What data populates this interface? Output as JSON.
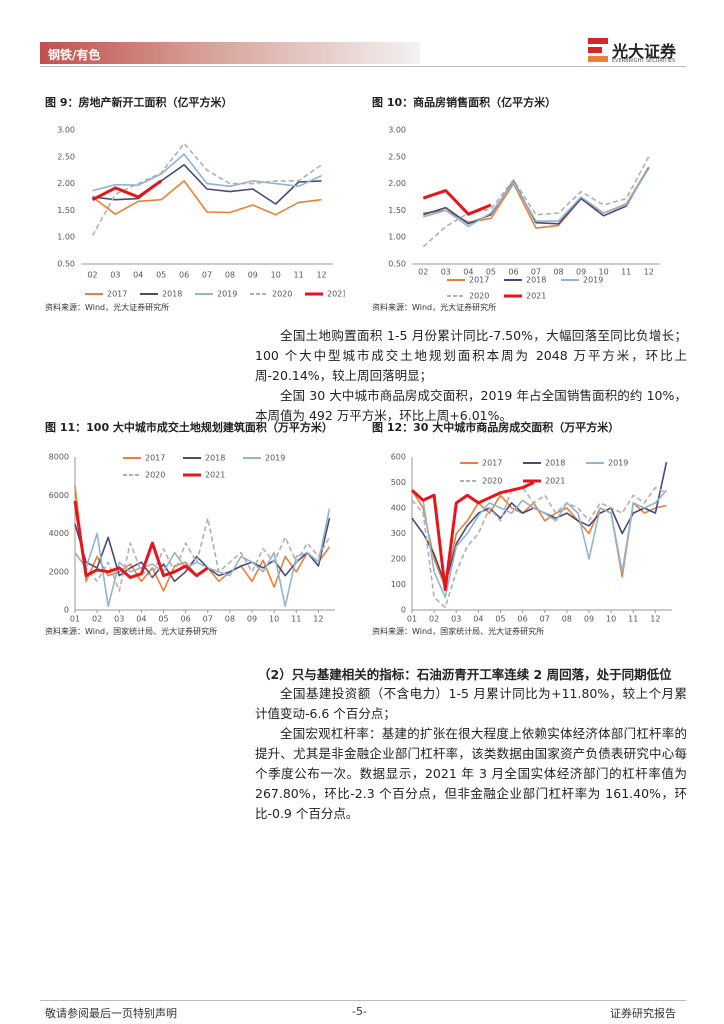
{
  "header": {
    "section": "钢铁/有色",
    "logo": "光大证券",
    "logo_en": "EVERBRIGHT SECURITIES"
  },
  "chart_data": [
    {
      "type": "line",
      "title": "图 9：房地产新开工面积（亿平方米）",
      "source": "资料来源：Wind，光大证券研究所",
      "categories": [
        "02",
        "03",
        "04",
        "05",
        "06",
        "07",
        "08",
        "09",
        "10",
        "11",
        "12"
      ],
      "ylim": [
        0.5,
        3.0
      ],
      "yticks": [
        {
          "value": 0.5,
          "label": "0.50"
        },
        {
          "value": 1.0,
          "label": "1.00"
        },
        {
          "value": 1.5,
          "label": "1.50"
        },
        {
          "value": 2.0,
          "label": "2.00"
        },
        {
          "value": 2.5,
          "label": "2.50"
        },
        {
          "value": 3.0,
          "label": "3.00"
        }
      ],
      "grid": false,
      "series": [
        {
          "name": "2017",
          "color": "#e8803a",
          "values": [
            1.75,
            1.43,
            1.67,
            1.7,
            2.05,
            1.47,
            1.46,
            1.6,
            1.42,
            1.65,
            1.7
          ]
        },
        {
          "name": "2018",
          "color": "#4b4a75",
          "values": [
            1.75,
            1.7,
            1.72,
            2.05,
            2.35,
            1.9,
            1.85,
            1.9,
            1.62,
            2.03,
            2.05
          ]
        },
        {
          "name": "2019",
          "color": "#8fb5cf",
          "values": [
            1.87,
            1.98,
            1.97,
            2.18,
            2.55,
            2.0,
            1.95,
            2.05,
            2.0,
            1.95,
            2.15
          ]
        },
        {
          "name": "2020",
          "color": "#b0b0b0",
          "dash": true,
          "values": [
            1.03,
            1.8,
            2.0,
            2.2,
            2.75,
            2.25,
            2.0,
            2.0,
            2.05,
            2.05,
            2.35
          ]
        },
        {
          "name": "2021",
          "color": "#e8141b",
          "line_width": 3,
          "values": [
            1.7,
            1.92,
            1.75,
            2.05,
            null,
            null,
            null,
            null,
            null,
            null,
            null
          ]
        }
      ]
    },
    {
      "type": "line",
      "title": "图 10：商品房销售面积（亿平方米）",
      "source": "资料来源：Wind，光大证券研究所",
      "categories": [
        "02",
        "03",
        "04",
        "05",
        "06",
        "07",
        "08",
        "09",
        "10",
        "11",
        "12"
      ],
      "ylim": [
        0.5,
        3.0
      ],
      "yticks": [
        {
          "value": 0.5,
          "label": "0.50"
        },
        {
          "value": 1.0,
          "label": "1.00"
        },
        {
          "value": 1.5,
          "label": "1.50"
        },
        {
          "value": 2.0,
          "label": "2.00"
        },
        {
          "value": 2.5,
          "label": "2.50"
        },
        {
          "value": 3.0,
          "label": "3.00"
        }
      ],
      "grid": false,
      "series": [
        {
          "name": "2017",
          "color": "#e8803a",
          "values": [
            1.45,
            1.5,
            1.28,
            1.35,
            2.0,
            1.17,
            1.22,
            1.72,
            1.45,
            1.62,
            2.3
          ]
        },
        {
          "name": "2018",
          "color": "#4b4a75",
          "values": [
            1.42,
            1.55,
            1.25,
            1.42,
            2.05,
            1.27,
            1.25,
            1.72,
            1.4,
            1.58,
            2.3
          ]
        },
        {
          "name": "2019",
          "color": "#8fb5cf",
          "values": [
            1.38,
            1.5,
            1.2,
            1.45,
            2.02,
            1.3,
            1.3,
            1.75,
            1.45,
            1.6,
            2.28
          ]
        },
        {
          "name": "2020",
          "color": "#b0b0b0",
          "dash": true,
          "values": [
            0.82,
            1.2,
            1.45,
            1.52,
            2.07,
            1.42,
            1.45,
            1.85,
            1.6,
            1.72,
            2.5
          ]
        },
        {
          "name": "2021",
          "color": "#e8141b",
          "line_width": 3,
          "values": [
            1.73,
            1.87,
            1.43,
            1.6,
            null,
            null,
            null,
            null,
            null,
            null,
            null
          ]
        }
      ]
    },
    {
      "type": "line",
      "title": "图 11：100 大中城市成交土地规划建筑面积（万平方米）",
      "source": "资料来源：Wind，国家统计局、光大证券研究所",
      "x": [
        1,
        2,
        3,
        4,
        5,
        6,
        7,
        8,
        9,
        10,
        11,
        12,
        13,
        14,
        15,
        16,
        17,
        18,
        19,
        20,
        21,
        22,
        23,
        24
      ],
      "xlim": [
        1,
        24.5
      ],
      "xticks": [
        {
          "value": 1,
          "label": "01"
        },
        {
          "value": 3,
          "label": "02"
        },
        {
          "value": 5,
          "label": "03"
        },
        {
          "value": 7,
          "label": "04"
        },
        {
          "value": 9,
          "label": "05"
        },
        {
          "value": 11,
          "label": "06"
        },
        {
          "value": 13,
          "label": "07"
        },
        {
          "value": 15,
          "label": "08"
        },
        {
          "value": 17,
          "label": "09"
        },
        {
          "value": 19,
          "label": "10"
        },
        {
          "value": 21,
          "label": "11"
        },
        {
          "value": 23,
          "label": "12"
        }
      ],
      "ylim": [
        0,
        8000
      ],
      "yticks": [
        0,
        2000,
        4000,
        6000,
        8000
      ],
      "grid": false,
      "series": [
        {
          "name": "2017",
          "color": "#e8803a",
          "values": [
            6500,
            1500,
            2800,
            1800,
            2000,
            2400,
            1500,
            2200,
            1000,
            2300,
            2500,
            1800,
            2200,
            1500,
            2000,
            2300,
            1500,
            2600,
            1200,
            2800,
            2000,
            3000,
            2500,
            3300
          ]
        },
        {
          "name": "2018",
          "color": "#4b4a75",
          "values": [
            4500,
            2500,
            2200,
            3800,
            1800,
            2200,
            2500,
            1700,
            2400,
            1500,
            2000,
            2800,
            2200,
            1800,
            2000,
            2300,
            2500,
            2200,
            2600,
            1800,
            2500,
            3000,
            2300,
            4800
          ]
        },
        {
          "name": "2019",
          "color": "#8fb5cf",
          "values": [
            3000,
            2200,
            4000,
            200,
            2500,
            2000,
            2200,
            2400,
            2000,
            3000,
            2200,
            2500,
            2200,
            2000,
            1800,
            2800,
            2500,
            2000,
            3000,
            200,
            2800,
            3000,
            2500,
            5300
          ]
        },
        {
          "name": "2020",
          "color": "#b0b0b0",
          "dash": true,
          "values": [
            3000,
            2200,
            1500,
            2500,
            1000,
            3500,
            2000,
            1800,
            3200,
            2000,
            3500,
            2500,
            4800,
            2000,
            2500,
            3000,
            2000,
            3200,
            2500,
            3800,
            2500,
            3500,
            2800,
            3800
          ]
        },
        {
          "name": "2021",
          "color": "#e8141b",
          "line_width": 3,
          "values": [
            5700,
            1800,
            2100,
            2000,
            2200,
            1700,
            1900,
            3500,
            1800,
            2000,
            2300,
            1800,
            2200,
            null,
            null,
            null,
            null,
            null,
            null,
            null,
            null,
            null,
            null,
            null
          ]
        }
      ]
    },
    {
      "type": "line",
      "title": "图 12：30 大中城市商品房成交面积（万平方米）",
      "source": "资料来源：Wind，国家统计局、光大证券研究所",
      "x": [
        1,
        2,
        3,
        4,
        5,
        6,
        7,
        8,
        9,
        10,
        11,
        12,
        13,
        14,
        15,
        16,
        17,
        18,
        19,
        20,
        21,
        22,
        23,
        24
      ],
      "xlim": [
        1,
        24.5
      ],
      "xticks": [
        {
          "value": 1,
          "label": "01"
        },
        {
          "value": 3,
          "label": "02"
        },
        {
          "value": 5,
          "label": "03"
        },
        {
          "value": 7,
          "label": "04"
        },
        {
          "value": 9,
          "label": "05"
        },
        {
          "value": 11,
          "label": "06"
        },
        {
          "value": 13,
          "label": "07"
        },
        {
          "value": 15,
          "label": "08"
        },
        {
          "value": 17,
          "label": "09"
        },
        {
          "value": 19,
          "label": "10"
        },
        {
          "value": 21,
          "label": "11"
        },
        {
          "value": 23,
          "label": "12"
        }
      ],
      "ylim": [
        0,
        600
      ],
      "yticks": [
        0,
        100,
        200,
        300,
        400,
        500,
        600
      ],
      "grid": false,
      "series": [
        {
          "name": "2017",
          "color": "#e8803a",
          "values": [
            470,
            400,
            200,
            90,
            300,
            350,
            420,
            380,
            450,
            400,
            380,
            420,
            350,
            380,
            400,
            350,
            300,
            400,
            380,
            130,
            420,
            380,
            400,
            410
          ]
        },
        {
          "name": "2018",
          "color": "#4b4a75",
          "values": [
            360,
            300,
            220,
            100,
            260,
            330,
            380,
            400,
            360,
            420,
            380,
            400,
            380,
            360,
            380,
            350,
            330,
            380,
            400,
            300,
            380,
            400,
            380,
            580
          ]
        },
        {
          "name": "2019",
          "color": "#8fb5cf",
          "values": [
            470,
            430,
            150,
            50,
            250,
            300,
            370,
            420,
            400,
            380,
            430,
            400,
            380,
            350,
            420,
            380,
            200,
            400,
            380,
            150,
            420,
            400,
            420,
            470
          ]
        },
        {
          "name": "2020",
          "color": "#b0b0b0",
          "dash": true,
          "values": [
            430,
            380,
            50,
            10,
            150,
            250,
            300,
            400,
            350,
            470,
            480,
            420,
            450,
            380,
            420,
            400,
            350,
            420,
            400,
            380,
            450,
            420,
            480,
            460
          ]
        },
        {
          "name": "2021",
          "color": "#e8141b",
          "line_width": 3,
          "values": [
            470,
            430,
            450,
            80,
            420,
            450,
            420,
            440,
            460,
            470,
            480,
            500,
            null,
            null,
            null,
            null,
            null,
            null,
            null,
            null,
            null,
            null,
            null,
            null
          ]
        }
      ]
    }
  ],
  "paragraphs": [
    "全国土地购置面积 1-5 月份累计同比-7.50%，大幅回落至同比负增长；100 个大中型城市成交土地规划面积本周为 2048 万平方米，环比上周-20.14%，较上周回落明显；",
    "全国 30 大中城市商品房成交面积，2019 年占全国销售面积的约 10%，本周值为 492 万平方米，环比上周+6.01%。"
  ],
  "section2": {
    "heading": "（2）只与基建相关的指标：石油沥青开工率连续 2 周回落，处于同期低位",
    "paragraphs": [
      "全国基建投资额（不含电力）1-5 月累计同比为+11.80%，较上个月累计值变动-6.6 个百分点；",
      "全国宏观杠杆率：基建的扩张在很大程度上依赖实体经济体部门杠杆率的提升、尤其是非金融企业部门杠杆率，该类数据由国家资产负债表研究中心每个季度公布一次。数据显示，2021 年 3 月全国实体经济部门的杠杆率值为 267.80%，环比-2.3 个百分点，但非金融企业部门杠杆率为 161.40%，环比-0.9 个百分点。"
    ]
  },
  "footer": {
    "left": "敬请参阅最后一页特别声明",
    "center": "-5-",
    "right": "证券研究报告"
  }
}
